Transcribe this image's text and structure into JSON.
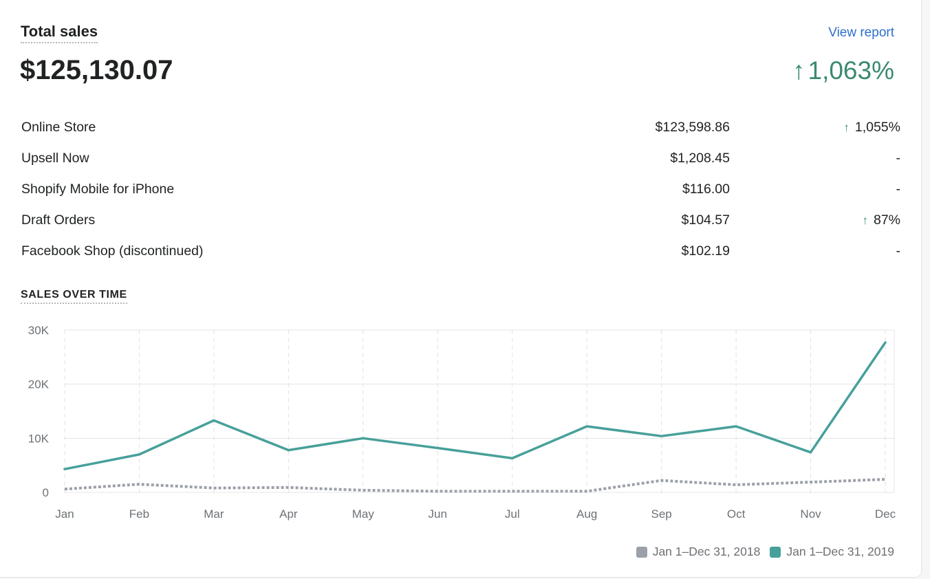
{
  "card": {
    "title": "Total sales",
    "view_report": "View report",
    "total": "$125,130.07",
    "total_change": "1,063%",
    "arrow": "↑"
  },
  "breakdown": [
    {
      "name": "Online Store",
      "amount": "$123,598.86",
      "change": "1,055%",
      "up": true
    },
    {
      "name": "Upsell Now",
      "amount": "$1,208.45",
      "change": "-",
      "up": false
    },
    {
      "name": "Shopify Mobile for iPhone",
      "amount": "$116.00",
      "change": "-",
      "up": false
    },
    {
      "name": "Draft Orders",
      "amount": "$104.57",
      "change": "87%",
      "up": true
    },
    {
      "name": "Facebook Shop (discontinued)",
      "amount": "$102.19",
      "change": "-",
      "up": false
    }
  ],
  "section_label": "SALES OVER TIME",
  "colors": {
    "current": "#47a09a",
    "previous": "#9ca0a8",
    "positive": "#3a8a6e",
    "link": "#2c6ecb"
  },
  "chart_data": {
    "type": "line",
    "x": [
      "Jan",
      "Feb",
      "Mar",
      "Apr",
      "May",
      "Jun",
      "Jul",
      "Aug",
      "Sep",
      "Oct",
      "Nov",
      "Dec"
    ],
    "yticks": [
      "0",
      "10K",
      "20K",
      "30K"
    ],
    "ylim": [
      0,
      30000
    ],
    "grid": true,
    "legend_position": "bottom-right",
    "series": [
      {
        "name": "Jan 1–Dec 31, 2019",
        "color": "#47a09a",
        "style": "solid",
        "values": [
          4300,
          7000,
          13300,
          7800,
          10000,
          8200,
          6300,
          12200,
          10400,
          12200,
          7400,
          27700
        ]
      },
      {
        "name": "Jan 1–Dec 31, 2018",
        "color": "#9ca0a8",
        "style": "dotted",
        "values": [
          600,
          1500,
          800,
          900,
          400,
          200,
          200,
          200,
          2200,
          1400,
          1900,
          2400
        ]
      }
    ]
  }
}
